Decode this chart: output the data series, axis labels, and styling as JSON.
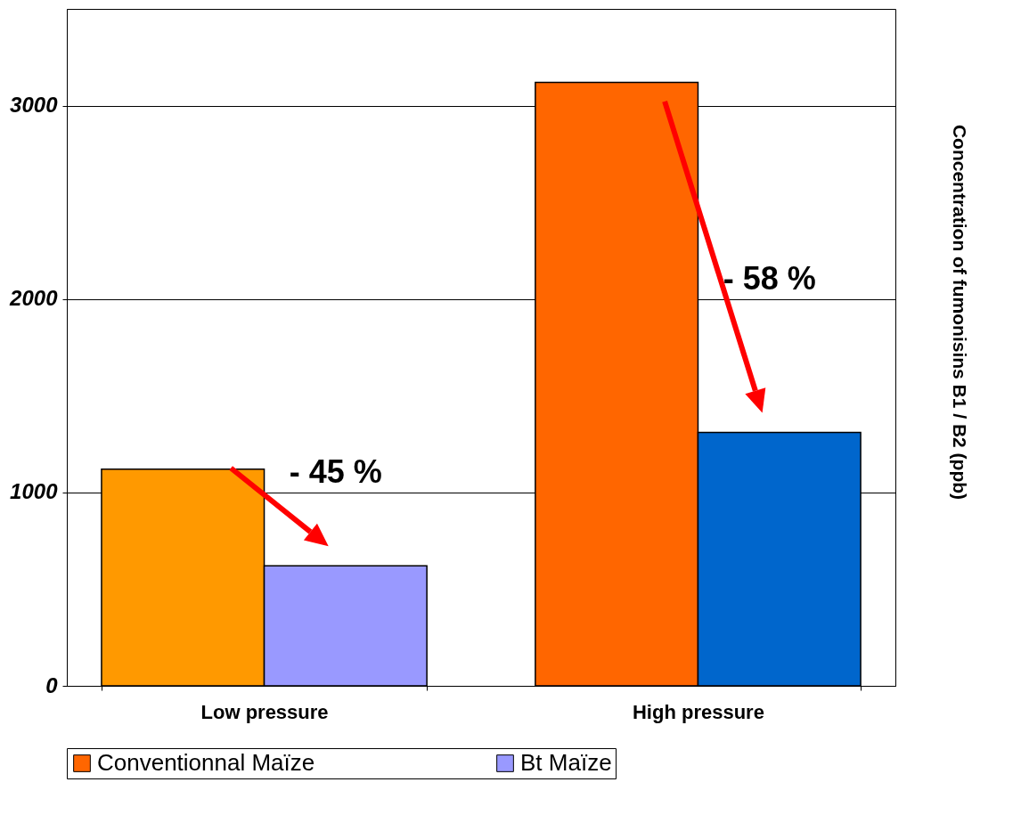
{
  "chart_data": {
    "type": "bar",
    "ylabel": "Concentration of fumonisins B1 / B2 (ppb)",
    "categories": [
      "Low pressure",
      "High pressure"
    ],
    "series": [
      {
        "name": "Conventionnal Maïze",
        "color": "#ff6600",
        "colors": [
          "#ff9900",
          "#ff6600"
        ],
        "values": [
          1120,
          3120
        ]
      },
      {
        "name": "Bt Maïze",
        "color": "#9999ff",
        "colors": [
          "#9999ff",
          "#0066cc"
        ],
        "values": [
          620,
          1310
        ]
      }
    ],
    "ylim": [
      0,
      3500
    ],
    "yticks": [
      0,
      1000,
      2000,
      3000
    ],
    "grid": "y",
    "legend": "bottom",
    "annotations": [
      {
        "text": "- 45 %",
        "x": "Low pressure",
        "y": 1100
      },
      {
        "text": "- 58 %",
        "x": "High pressure",
        "y": 2100
      }
    ]
  }
}
